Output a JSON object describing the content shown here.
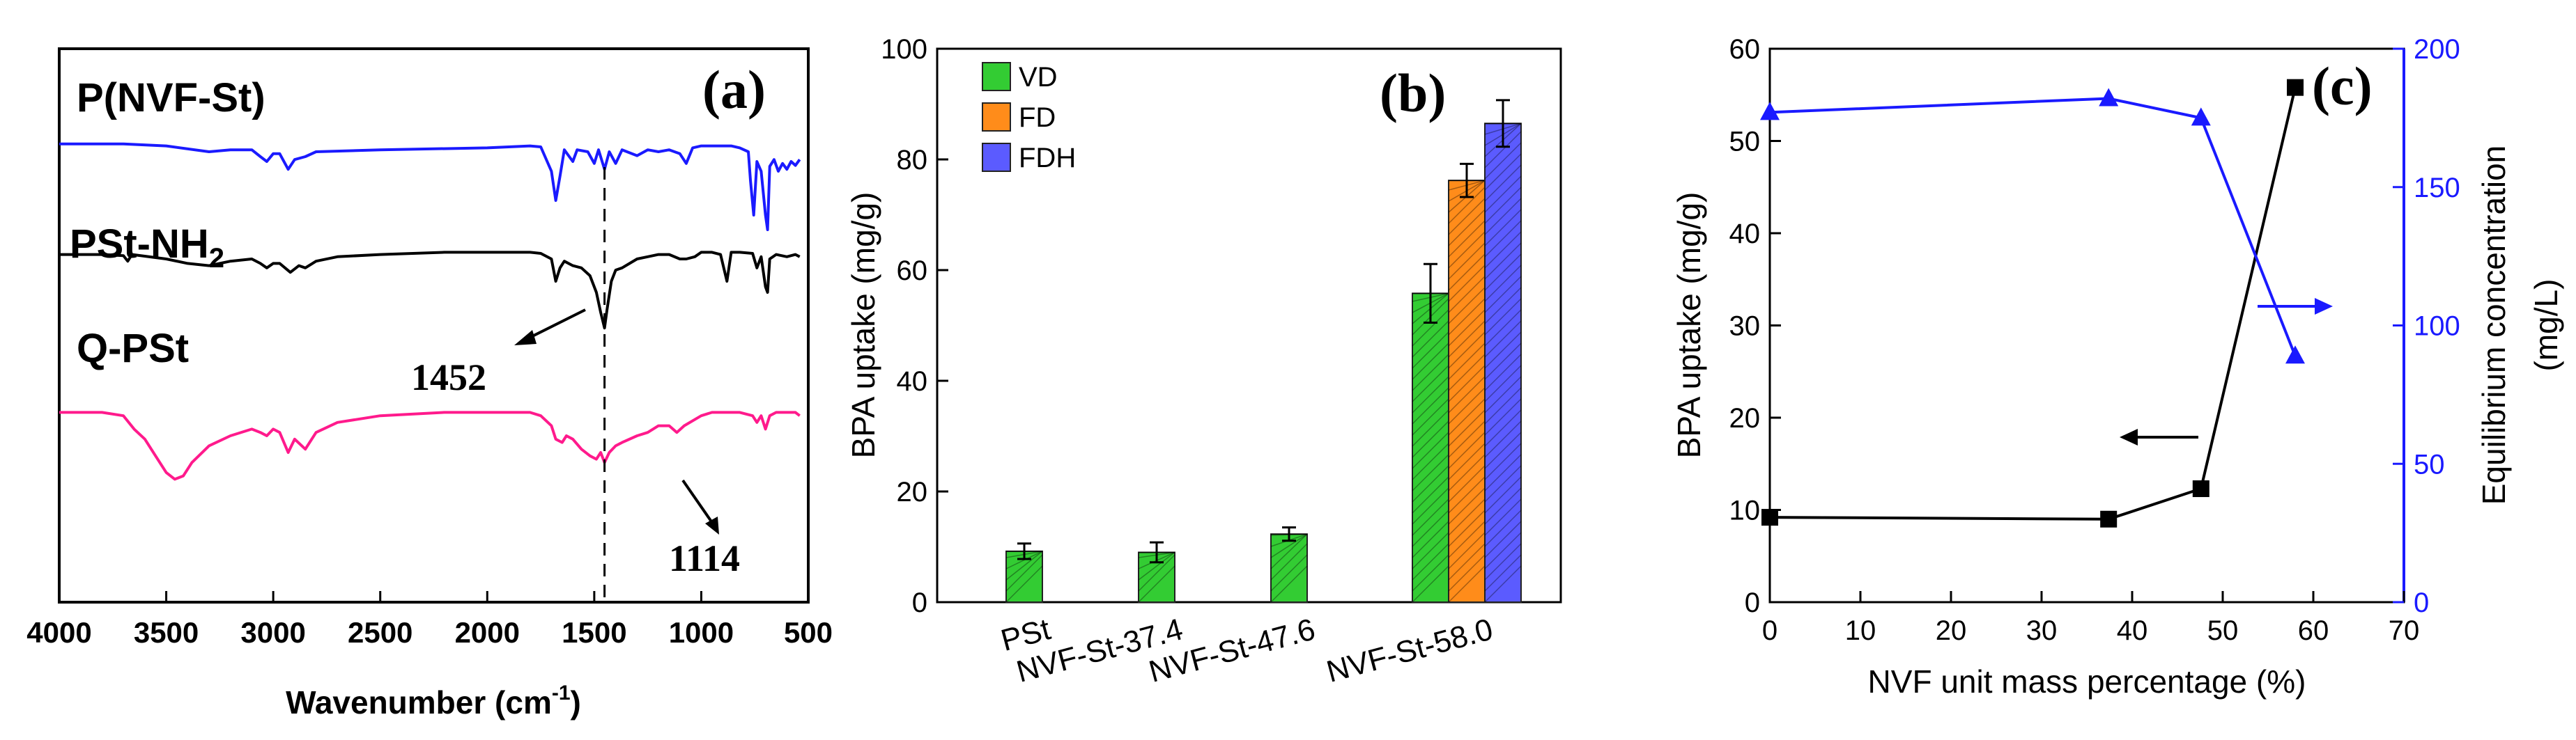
{
  "chart_data": [
    {
      "type": "line",
      "panel_label": "(a)",
      "xlabel": "Wavenumber (cm",
      "xlabel_sup": "-1",
      "xlabel_end": ")",
      "xlim": [
        4000,
        500
      ],
      "x_ticks": [
        "4000",
        "3500",
        "3000",
        "2500",
        "2000",
        "1500",
        "1000",
        "500"
      ],
      "series": [
        {
          "name": "P(NVF-St)",
          "color": "#1a1aff",
          "points": [
            [
              4000,
              0.88
            ],
            [
              3700,
              0.88
            ],
            [
              3500,
              0.86
            ],
            [
              3300,
              0.8
            ],
            [
              3200,
              0.82
            ],
            [
              3100,
              0.82
            ],
            [
              3060,
              0.75
            ],
            [
              3030,
              0.7
            ],
            [
              3000,
              0.78
            ],
            [
              2970,
              0.78
            ],
            [
              2930,
              0.62
            ],
            [
              2900,
              0.72
            ],
            [
              2850,
              0.75
            ],
            [
              2800,
              0.8
            ],
            [
              2500,
              0.82
            ],
            [
              2000,
              0.84
            ],
            [
              1900,
              0.85
            ],
            [
              1800,
              0.86
            ],
            [
              1750,
              0.85
            ],
            [
              1700,
              0.6
            ],
            [
              1680,
              0.3
            ],
            [
              1660,
              0.55
            ],
            [
              1640,
              0.82
            ],
            [
              1600,
              0.7
            ],
            [
              1580,
              0.82
            ],
            [
              1530,
              0.8
            ],
            [
              1500,
              0.68
            ],
            [
              1480,
              0.82
            ],
            [
              1452,
              0.62
            ],
            [
              1430,
              0.8
            ],
            [
              1400,
              0.68
            ],
            [
              1370,
              0.82
            ],
            [
              1300,
              0.76
            ],
            [
              1250,
              0.82
            ],
            [
              1200,
              0.8
            ],
            [
              1150,
              0.82
            ],
            [
              1100,
              0.78
            ],
            [
              1070,
              0.68
            ],
            [
              1040,
              0.84
            ],
            [
              1000,
              0.86
            ],
            [
              950,
              0.86
            ],
            [
              900,
              0.86
            ],
            [
              860,
              0.86
            ],
            [
              820,
              0.84
            ],
            [
              780,
              0.8
            ],
            [
              770,
              0.5
            ],
            [
              755,
              0.15
            ],
            [
              740,
              0.7
            ],
            [
              720,
              0.6
            ],
            [
              700,
              0.15
            ],
            [
              690,
              0.0
            ],
            [
              680,
              0.65
            ],
            [
              660,
              0.72
            ],
            [
              640,
              0.6
            ],
            [
              620,
              0.68
            ],
            [
              600,
              0.62
            ],
            [
              580,
              0.7
            ],
            [
              560,
              0.66
            ],
            [
              540,
              0.72
            ]
          ]
        },
        {
          "name": "PSt-NH2",
          "color": "#000000",
          "points": [
            [
              4000,
              0.84
            ],
            [
              3800,
              0.84
            ],
            [
              3700,
              0.83
            ],
            [
              3680,
              0.78
            ],
            [
              3660,
              0.84
            ],
            [
              3500,
              0.8
            ],
            [
              3400,
              0.76
            ],
            [
              3300,
              0.74
            ],
            [
              3200,
              0.78
            ],
            [
              3100,
              0.8
            ],
            [
              3060,
              0.76
            ],
            [
              3030,
              0.72
            ],
            [
              3000,
              0.76
            ],
            [
              2970,
              0.76
            ],
            [
              2920,
              0.68
            ],
            [
              2880,
              0.74
            ],
            [
              2850,
              0.72
            ],
            [
              2800,
              0.78
            ],
            [
              2700,
              0.82
            ],
            [
              2500,
              0.84
            ],
            [
              2200,
              0.86
            ],
            [
              2000,
              0.86
            ],
            [
              1900,
              0.86
            ],
            [
              1800,
              0.86
            ],
            [
              1750,
              0.85
            ],
            [
              1700,
              0.8
            ],
            [
              1680,
              0.6
            ],
            [
              1660,
              0.72
            ],
            [
              1640,
              0.78
            ],
            [
              1600,
              0.74
            ],
            [
              1560,
              0.72
            ],
            [
              1520,
              0.65
            ],
            [
              1490,
              0.5
            ],
            [
              1470,
              0.32
            ],
            [
              1452,
              0.18
            ],
            [
              1440,
              0.35
            ],
            [
              1420,
              0.6
            ],
            [
              1400,
              0.7
            ],
            [
              1370,
              0.72
            ],
            [
              1300,
              0.8
            ],
            [
              1250,
              0.82
            ],
            [
              1200,
              0.84
            ],
            [
              1150,
              0.84
            ],
            [
              1100,
              0.8
            ],
            [
              1070,
              0.8
            ],
            [
              1030,
              0.82
            ],
            [
              1000,
              0.86
            ],
            [
              950,
              0.86
            ],
            [
              910,
              0.84
            ],
            [
              880,
              0.6
            ],
            [
              860,
              0.86
            ],
            [
              820,
              0.86
            ],
            [
              760,
              0.85
            ],
            [
              740,
              0.72
            ],
            [
              720,
              0.82
            ],
            [
              700,
              0.55
            ],
            [
              690,
              0.5
            ],
            [
              680,
              0.8
            ],
            [
              650,
              0.84
            ],
            [
              600,
              0.82
            ],
            [
              560,
              0.84
            ],
            [
              540,
              0.82
            ]
          ]
        },
        {
          "name": "Q-PSt",
          "color": "#ff1a8c",
          "points": [
            [
              4000,
              0.74
            ],
            [
              3800,
              0.74
            ],
            [
              3700,
              0.72
            ],
            [
              3650,
              0.64
            ],
            [
              3600,
              0.58
            ],
            [
              3550,
              0.48
            ],
            [
              3500,
              0.38
            ],
            [
              3460,
              0.34
            ],
            [
              3420,
              0.36
            ],
            [
              3380,
              0.44
            ],
            [
              3300,
              0.54
            ],
            [
              3200,
              0.6
            ],
            [
              3100,
              0.64
            ],
            [
              3060,
              0.62
            ],
            [
              3030,
              0.6
            ],
            [
              3000,
              0.64
            ],
            [
              2970,
              0.62
            ],
            [
              2930,
              0.5
            ],
            [
              2900,
              0.58
            ],
            [
              2850,
              0.52
            ],
            [
              2800,
              0.62
            ],
            [
              2700,
              0.68
            ],
            [
              2500,
              0.72
            ],
            [
              2200,
              0.74
            ],
            [
              2000,
              0.74
            ],
            [
              1900,
              0.74
            ],
            [
              1800,
              0.74
            ],
            [
              1750,
              0.72
            ],
            [
              1700,
              0.66
            ],
            [
              1680,
              0.58
            ],
            [
              1650,
              0.56
            ],
            [
              1630,
              0.6
            ],
            [
              1600,
              0.58
            ],
            [
              1560,
              0.52
            ],
            [
              1520,
              0.48
            ],
            [
              1490,
              0.46
            ],
            [
              1470,
              0.5
            ],
            [
              1452,
              0.44
            ],
            [
              1430,
              0.5
            ],
            [
              1400,
              0.54
            ],
            [
              1370,
              0.56
            ],
            [
              1300,
              0.6
            ],
            [
              1250,
              0.62
            ],
            [
              1200,
              0.66
            ],
            [
              1150,
              0.66
            ],
            [
              1114,
              0.62
            ],
            [
              1080,
              0.66
            ],
            [
              1000,
              0.72
            ],
            [
              950,
              0.74
            ],
            [
              910,
              0.74
            ],
            [
              880,
              0.74
            ],
            [
              820,
              0.74
            ],
            [
              760,
              0.72
            ],
            [
              740,
              0.68
            ],
            [
              720,
              0.72
            ],
            [
              700,
              0.64
            ],
            [
              680,
              0.72
            ],
            [
              650,
              0.74
            ],
            [
              600,
              0.74
            ],
            [
              560,
              0.74
            ],
            [
              540,
              0.72
            ]
          ]
        }
      ],
      "labels": [
        {
          "text": "P(NVF-St)",
          "color": "#000000"
        },
        {
          "text": "PSt-NH",
          "sub": "2",
          "color": "#000000"
        },
        {
          "text": "Q-PSt",
          "color": "#000000"
        }
      ],
      "annotations": [
        "1452",
        "1114"
      ],
      "reference_line_x": 1452
    },
    {
      "type": "bar",
      "panel_label": "(b)",
      "ylabel": "BPA  uptake (mg/g)",
      "ylim": [
        0,
        100
      ],
      "y_ticks": [
        0,
        20,
        40,
        60,
        80,
        100
      ],
      "categories": [
        "PSt",
        "NVF-St-37.4",
        "NVF-St-47.6",
        "NVF-St-58.0"
      ],
      "series": [
        {
          "name": "VD",
          "color": "#33cc33",
          "values": [
            9.2,
            9.0,
            12.3,
            55.8
          ],
          "errors": [
            1.4,
            1.8,
            1.2,
            5.3
          ]
        },
        {
          "name": "FD",
          "color": "#ff8c1a",
          "values": [
            null,
            null,
            null,
            76.2
          ],
          "errors": [
            null,
            null,
            null,
            3.0
          ]
        },
        {
          "name": "FDH",
          "color": "#5b5bff",
          "values": [
            null,
            null,
            null,
            86.5
          ],
          "errors": [
            null,
            null,
            null,
            4.2
          ]
        }
      ],
      "legend_placement": "top-left"
    },
    {
      "type": "line",
      "panel_label": "(c)",
      "xlabel": "NVF unit mass percentage (%)",
      "ylabel": "BPA  uptake (mg/g)",
      "y2label_1": "Equilibrium concentration",
      "y2label_2": "(mg/L)",
      "xlim": [
        0,
        70
      ],
      "ylim": [
        0,
        60
      ],
      "y2lim": [
        0,
        200
      ],
      "x_ticks": [
        0,
        10,
        20,
        30,
        40,
        50,
        60,
        70
      ],
      "y_ticks": [
        0,
        10,
        20,
        30,
        40,
        50,
        60
      ],
      "y2_ticks": [
        0,
        50,
        100,
        150,
        200
      ],
      "x": [
        0,
        37.4,
        47.6,
        58.0
      ],
      "series": [
        {
          "axis": "left",
          "color": "#000000",
          "marker": "square",
          "values": [
            9.2,
            9.0,
            12.3,
            55.8
          ]
        },
        {
          "axis": "right",
          "color": "#1a1aff",
          "marker": "triangle",
          "values": [
            177,
            182,
            175,
            89
          ]
        }
      ]
    }
  ]
}
